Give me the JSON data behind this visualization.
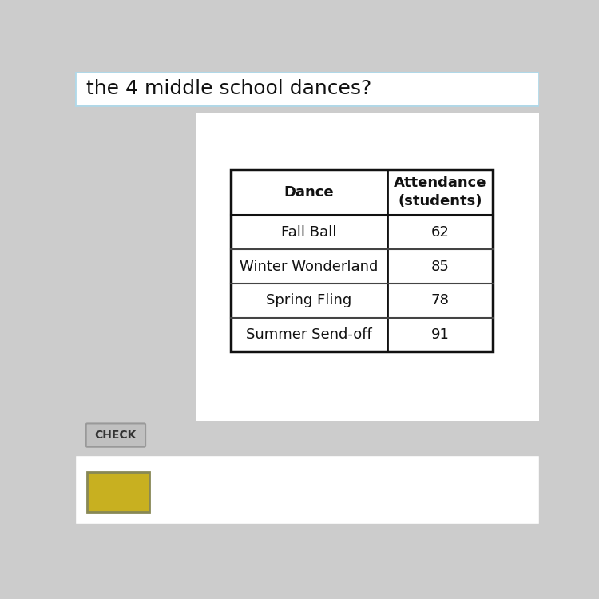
{
  "title_text": "the 4 middle school dances?",
  "table_headers": [
    "Dance",
    "Attendance\n(students)"
  ],
  "table_rows": [
    [
      "Fall Ball",
      "62"
    ],
    [
      "Winter Wonderland",
      "85"
    ],
    [
      "Spring Fling",
      "78"
    ],
    [
      "Summer Send-off",
      "91"
    ]
  ],
  "bg_color": "#cccccc",
  "card_color": "#ffffff",
  "title_bg_color": "#ffffff",
  "title_border_color": "#b0d8e8",
  "check_btn_color": "#c0c0c0",
  "check_btn_text": "CHECK",
  "answer_box_color": "#c8b020",
  "header_font_size": 13,
  "row_font_size": 13,
  "table_border_color": "#111111",
  "table_line_color": "#444444",
  "title_font_size": 18
}
